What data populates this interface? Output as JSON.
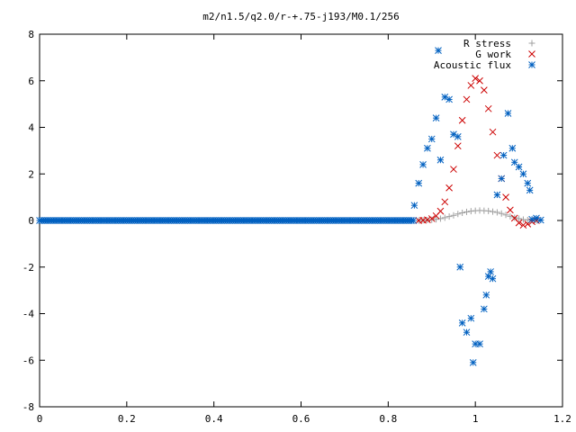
{
  "chart_data": {
    "type": "scatter",
    "title": "m2/n1.5/q2.0/r-+.75-j193/M0.1/256",
    "xlabel": "",
    "ylabel": "",
    "xlim": [
      0,
      1.2
    ],
    "ylim": [
      -8,
      8
    ],
    "x_ticks": [
      "0",
      "0.2",
      "0.4",
      "0.6",
      "0.8",
      "1",
      "1.2"
    ],
    "y_ticks": [
      "-8",
      "-6",
      "-4",
      "-2",
      "0",
      "2",
      "4",
      "6",
      "8"
    ],
    "grid": false,
    "legend_position": "top-right",
    "series": [
      {
        "name": "R stress",
        "marker": "+",
        "color": "#a0a0a0",
        "points": [
          [
            0.87,
            0.0
          ],
          [
            0.88,
            0.01
          ],
          [
            0.89,
            0.02
          ],
          [
            0.9,
            0.03
          ],
          [
            0.91,
            0.05
          ],
          [
            0.92,
            0.08
          ],
          [
            0.93,
            0.12
          ],
          [
            0.94,
            0.17
          ],
          [
            0.95,
            0.22
          ],
          [
            0.96,
            0.28
          ],
          [
            0.97,
            0.33
          ],
          [
            0.98,
            0.37
          ],
          [
            0.99,
            0.4
          ],
          [
            1.0,
            0.42
          ],
          [
            1.01,
            0.43
          ],
          [
            1.02,
            0.42
          ],
          [
            1.03,
            0.41
          ],
          [
            1.04,
            0.38
          ],
          [
            1.05,
            0.35
          ],
          [
            1.06,
            0.3
          ],
          [
            1.07,
            0.24
          ],
          [
            1.08,
            0.18
          ],
          [
            1.09,
            0.12
          ],
          [
            1.1,
            0.08
          ],
          [
            1.11,
            0.04
          ],
          [
            1.12,
            0.02
          ],
          [
            1.13,
            0.01
          ],
          [
            1.14,
            0.0
          ]
        ]
      },
      {
        "name": "G work",
        "marker": "x",
        "color": "#cc0000",
        "points": [
          [
            0.87,
            0.0
          ],
          [
            0.88,
            0.01
          ],
          [
            0.89,
            0.03
          ],
          [
            0.9,
            0.08
          ],
          [
            0.91,
            0.2
          ],
          [
            0.92,
            0.4
          ],
          [
            0.93,
            0.8
          ],
          [
            0.94,
            1.4
          ],
          [
            0.95,
            2.2
          ],
          [
            0.96,
            3.2
          ],
          [
            0.97,
            4.3
          ],
          [
            0.98,
            5.2
          ],
          [
            0.99,
            5.8
          ],
          [
            1.0,
            6.1
          ],
          [
            1.01,
            6.0
          ],
          [
            1.02,
            5.6
          ],
          [
            1.03,
            4.8
          ],
          [
            1.04,
            3.8
          ],
          [
            1.05,
            2.8
          ],
          [
            1.06,
            1.8
          ],
          [
            1.07,
            1.0
          ],
          [
            1.08,
            0.45
          ],
          [
            1.09,
            0.1
          ],
          [
            1.1,
            -0.1
          ],
          [
            1.11,
            -0.2
          ],
          [
            1.12,
            -0.15
          ],
          [
            1.13,
            -0.05
          ],
          [
            1.14,
            0.0
          ]
        ]
      },
      {
        "name": "Acoustic flux",
        "marker": "*",
        "color": "#0060c0",
        "points": [
          [
            0.86,
            0.65
          ],
          [
            0.87,
            1.6
          ],
          [
            0.88,
            2.4
          ],
          [
            0.89,
            3.1
          ],
          [
            0.9,
            3.5
          ],
          [
            0.91,
            4.4
          ],
          [
            0.915,
            7.3
          ],
          [
            0.92,
            2.6
          ],
          [
            0.93,
            5.3
          ],
          [
            0.94,
            5.2
          ],
          [
            0.95,
            3.7
          ],
          [
            0.96,
            3.6
          ],
          [
            0.965,
            -2.0
          ],
          [
            0.97,
            -4.4
          ],
          [
            0.98,
            -4.8
          ],
          [
            0.99,
            -4.2
          ],
          [
            0.995,
            -6.1
          ],
          [
            1.0,
            -5.3
          ],
          [
            1.01,
            -5.3
          ],
          [
            1.02,
            -3.8
          ],
          [
            1.025,
            -3.2
          ],
          [
            1.03,
            -2.4
          ],
          [
            1.035,
            -2.2
          ],
          [
            1.04,
            -2.5
          ],
          [
            1.05,
            1.1
          ],
          [
            1.06,
            1.8
          ],
          [
            1.065,
            2.8
          ],
          [
            1.075,
            4.6
          ],
          [
            1.085,
            3.1
          ],
          [
            1.09,
            2.5
          ],
          [
            1.1,
            2.3
          ],
          [
            1.11,
            2.0
          ],
          [
            1.12,
            1.6
          ],
          [
            1.125,
            1.3
          ],
          [
            1.13,
            0.05
          ],
          [
            1.14,
            0.1
          ],
          [
            1.15,
            0.02
          ]
        ],
        "zero_baseline_x": [
          0.0,
          0.86
        ]
      }
    ]
  }
}
